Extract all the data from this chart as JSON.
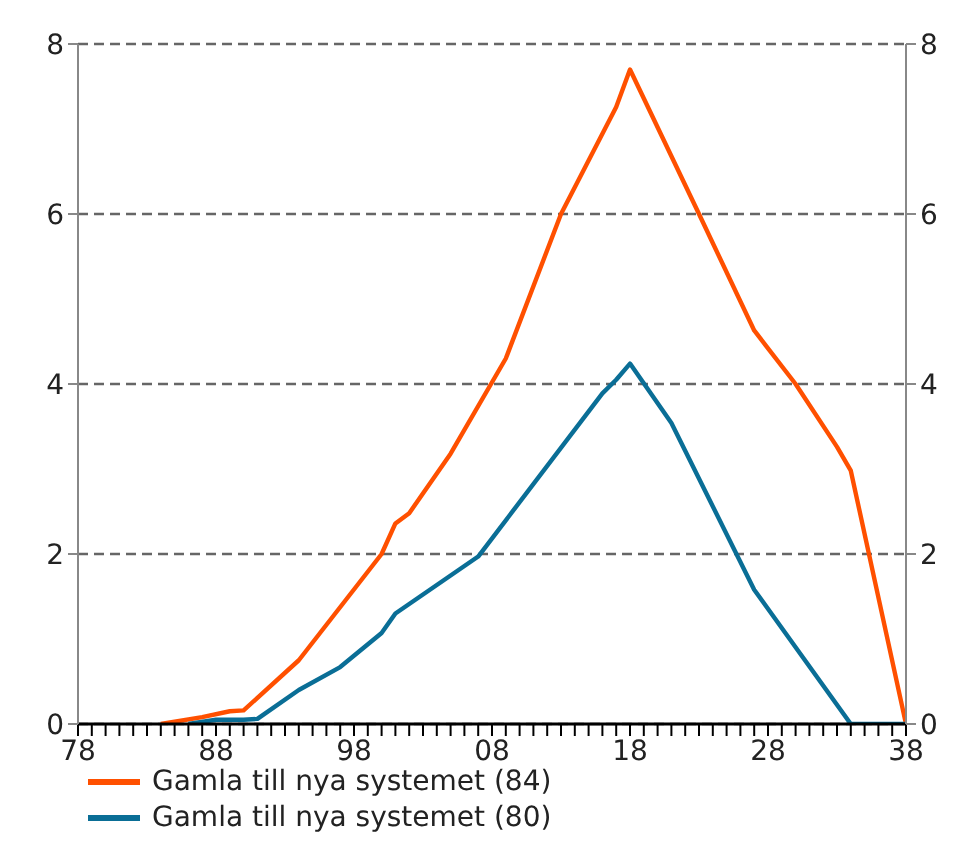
{
  "chart_data": {
    "type": "line",
    "xlim": [
      1978,
      2038
    ],
    "xticks": [
      {
        "value": 1978,
        "label": "78"
      },
      {
        "value": 1979,
        "label": null
      },
      {
        "value": 1980,
        "label": null
      },
      {
        "value": 1981,
        "label": null
      },
      {
        "value": 1982,
        "label": null
      },
      {
        "value": 1983,
        "label": null
      },
      {
        "value": 1984,
        "label": null
      },
      {
        "value": 1985,
        "label": null
      },
      {
        "value": 1986,
        "label": null
      },
      {
        "value": 1987,
        "label": null
      },
      {
        "value": 1988,
        "label": "88"
      },
      {
        "value": 1989,
        "label": null
      },
      {
        "value": 1990,
        "label": null
      },
      {
        "value": 1991,
        "label": null
      },
      {
        "value": 1992,
        "label": null
      },
      {
        "value": 1993,
        "label": null
      },
      {
        "value": 1994,
        "label": null
      },
      {
        "value": 1995,
        "label": null
      },
      {
        "value": 1996,
        "label": null
      },
      {
        "value": 1997,
        "label": null
      },
      {
        "value": 1998,
        "label": "98"
      },
      {
        "value": 1999,
        "label": null
      },
      {
        "value": 2000,
        "label": null
      },
      {
        "value": 2001,
        "label": null
      },
      {
        "value": 2002,
        "label": null
      },
      {
        "value": 2003,
        "label": null
      },
      {
        "value": 2004,
        "label": null
      },
      {
        "value": 2005,
        "label": null
      },
      {
        "value": 2006,
        "label": null
      },
      {
        "value": 2007,
        "label": null
      },
      {
        "value": 2008,
        "label": "08"
      },
      {
        "value": 2009,
        "label": null
      },
      {
        "value": 2010,
        "label": null
      },
      {
        "value": 2011,
        "label": null
      },
      {
        "value": 2012,
        "label": null
      },
      {
        "value": 2013,
        "label": null
      },
      {
        "value": 2014,
        "label": null
      },
      {
        "value": 2015,
        "label": null
      },
      {
        "value": 2016,
        "label": null
      },
      {
        "value": 2017,
        "label": null
      },
      {
        "value": 2018,
        "label": "18"
      },
      {
        "value": 2019,
        "label": null
      },
      {
        "value": 2020,
        "label": null
      },
      {
        "value": 2021,
        "label": null
      },
      {
        "value": 2022,
        "label": null
      },
      {
        "value": 2023,
        "label": null
      },
      {
        "value": 2024,
        "label": null
      },
      {
        "value": 2025,
        "label": null
      },
      {
        "value": 2026,
        "label": null
      },
      {
        "value": 2027,
        "label": null
      },
      {
        "value": 2028,
        "label": "28"
      },
      {
        "value": 2029,
        "label": null
      },
      {
        "value": 2030,
        "label": null
      },
      {
        "value": 2031,
        "label": null
      },
      {
        "value": 2032,
        "label": null
      },
      {
        "value": 2033,
        "label": null
      },
      {
        "value": 2034,
        "label": null
      },
      {
        "value": 2035,
        "label": null
      },
      {
        "value": 2036,
        "label": null
      },
      {
        "value": 2037,
        "label": null
      },
      {
        "value": 2038,
        "label": "38"
      }
    ],
    "ylim": [
      0,
      8
    ],
    "yticks": [
      0,
      2,
      4,
      6,
      8
    ],
    "y2lim": [
      0,
      8
    ],
    "y2ticks": [
      0,
      2,
      4,
      6,
      8
    ],
    "grid": "y",
    "legend": "bottom",
    "marker": "none",
    "line_style": "solid",
    "series": [
      {
        "name": "Gamla till nya systemet (84)",
        "color": "#ff5000",
        "x": [
          1984,
          1987,
          1989,
          1990,
          1994,
          2000,
          2001,
          2002,
          2005,
          2009,
          2013,
          2017,
          2018,
          2023,
          2027,
          2030,
          2033,
          2034,
          2038
        ],
        "values": [
          0,
          0.08,
          0.15,
          0.16,
          0.75,
          2.0,
          2.36,
          2.48,
          3.18,
          4.3,
          6.0,
          7.26,
          7.7,
          6.0,
          4.63,
          4.0,
          3.26,
          2.98,
          0
        ]
      },
      {
        "name": "Gamla till nya systemet (80)",
        "color": "#0a6e96",
        "x": [
          1986,
          1988,
          1990,
          1991,
          1994,
          1997,
          2000,
          2001,
          2007,
          2016,
          2017,
          2018,
          2021,
          2027,
          2034,
          2038
        ],
        "values": [
          0,
          0.05,
          0.05,
          0.06,
          0.4,
          0.67,
          1.07,
          1.3,
          1.97,
          3.89,
          4.05,
          4.24,
          3.54,
          1.58,
          0,
          0
        ]
      }
    ]
  }
}
